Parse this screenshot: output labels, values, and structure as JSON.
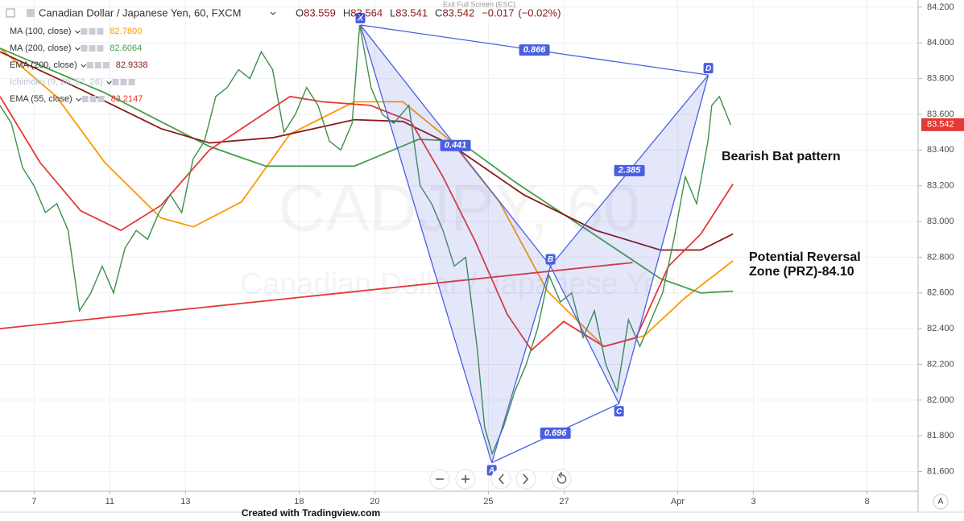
{
  "chart_data": {
    "type": "line",
    "title": "Canadian Dollar / Japanese Yen, 60, FXCM",
    "quote": {
      "labels": [
        "O",
        "H",
        "L",
        "C"
      ],
      "values": [
        83.559,
        83.564,
        83.541,
        83.542
      ]
    },
    "change": {
      "value": -0.017,
      "label": "−0.017"
    },
    "change_pct": {
      "value": -0.02,
      "label": "(−0.02%)"
    },
    "last_price": {
      "value": 83.542,
      "label": "83.542",
      "color": "#e53935"
    },
    "fullscreen_hint": "Exit Full Screen (ESC)",
    "watermark": [
      "CADJPY, 60",
      "Canadian Dollar / Japanese Yen"
    ],
    "footer": "Created with Tradingview.com",
    "scale_button": "A",
    "grid": true,
    "xlim": [
      -0.9,
      23.35
    ],
    "ylim": [
      81.49,
      84.24
    ],
    "xticks": [
      {
        "value": 0,
        "label": "7"
      },
      {
        "value": 2,
        "label": "11"
      },
      {
        "value": 4,
        "label": "13"
      },
      {
        "value": 7,
        "label": "18"
      },
      {
        "value": 9,
        "label": "20"
      },
      {
        "value": 12,
        "label": "25"
      },
      {
        "value": 14,
        "label": "27"
      },
      {
        "value": 17,
        "label": "Apr"
      },
      {
        "value": 19,
        "label": "3"
      },
      {
        "value": 22,
        "label": "8"
      }
    ],
    "yticks": [
      {
        "value": 81.6,
        "label": "81.600"
      },
      {
        "value": 81.8,
        "label": "81.800"
      },
      {
        "value": 82.0,
        "label": "82.000"
      },
      {
        "value": 82.2,
        "label": "82.200"
      },
      {
        "value": 82.4,
        "label": "82.400"
      },
      {
        "value": 82.6,
        "label": "82.600"
      },
      {
        "value": 82.8,
        "label": "82.800"
      },
      {
        "value": 83.0,
        "label": "83.000"
      },
      {
        "value": 83.2,
        "label": "83.200"
      },
      {
        "value": 83.4,
        "label": "83.400"
      },
      {
        "value": 83.6,
        "label": "83.600"
      },
      {
        "value": 83.8,
        "label": "83.800"
      },
      {
        "value": 84.0,
        "label": "84.000"
      },
      {
        "value": 84.2,
        "label": "84.200"
      }
    ],
    "price": {
      "color": "#3d8f4a",
      "x": [
        -0.9,
        -0.6,
        -0.3,
        0,
        0.3,
        0.6,
        0.9,
        1.2,
        1.5,
        1.8,
        2.1,
        2.4,
        2.7,
        3.0,
        3.3,
        3.6,
        3.9,
        4.2,
        4.5,
        4.8,
        5.1,
        5.4,
        5.7,
        6.0,
        6.3,
        6.6,
        6.9,
        7.2,
        7.5,
        7.8,
        8.1,
        8.4,
        8.6,
        8.9,
        9.2,
        9.5,
        9.9,
        10.2,
        10.5,
        10.8,
        11.1,
        11.4,
        11.7,
        11.9,
        12.1,
        12.4,
        12.7,
        13.0,
        13.3,
        13.6,
        13.9,
        14.2,
        14.5,
        14.8,
        15.1,
        15.4,
        15.7,
        16.0,
        16.3,
        16.6,
        16.9,
        17.2,
        17.5,
        17.8,
        17.9,
        18.1,
        18.4
      ],
      "values": [
        83.65,
        83.55,
        83.3,
        83.2,
        83.05,
        83.1,
        82.95,
        82.5,
        82.6,
        82.75,
        82.6,
        82.85,
        82.95,
        82.9,
        83.05,
        83.15,
        83.05,
        83.35,
        83.45,
        83.7,
        83.75,
        83.85,
        83.8,
        83.95,
        83.85,
        83.5,
        83.6,
        83.75,
        83.65,
        83.45,
        83.4,
        83.55,
        84.1,
        83.75,
        83.6,
        83.55,
        83.65,
        83.2,
        83.1,
        82.95,
        82.75,
        82.8,
        82.3,
        81.85,
        81.7,
        81.85,
        82.05,
        82.2,
        82.4,
        82.7,
        82.55,
        82.6,
        82.35,
        82.5,
        82.2,
        82.05,
        82.45,
        82.3,
        82.45,
        82.6,
        82.9,
        83.25,
        83.1,
        83.45,
        83.65,
        83.7,
        83.54
      ]
    },
    "series": [
      {
        "name": "MA (100, close)",
        "color": "#ff9800",
        "last": {
          "value": 82.78,
          "label": "82.7800"
        },
        "x": [
          -0.9,
          0.59,
          1.87,
          3.35,
          4.21,
          5.48,
          6.76,
          8.46,
          9.74,
          11.01,
          12.29,
          13.56,
          15.05,
          16.12,
          17.18,
          18.46
        ],
        "values": [
          83.97,
          83.7,
          83.33,
          83.02,
          82.97,
          83.11,
          83.49,
          83.67,
          83.67,
          83.45,
          83.11,
          82.61,
          82.3,
          82.36,
          82.57,
          82.78
        ]
      },
      {
        "name": "MA (200, close)",
        "color": "#43a047",
        "last": {
          "value": 82.6064,
          "label": "82.6064"
        },
        "x": [
          -0.9,
          1.87,
          4.63,
          6.12,
          8.46,
          10.16,
          11.22,
          12.71,
          14.63,
          16.54,
          17.61,
          18.46
        ],
        "values": [
          83.97,
          83.72,
          83.42,
          83.31,
          83.31,
          83.46,
          83.45,
          83.22,
          82.95,
          82.68,
          82.6,
          82.61
        ]
      },
      {
        "name": "EMA (200, close)",
        "color": "#8b1a1a",
        "last": {
          "value": 82.9338,
          "label": "82.9338"
        },
        "x": [
          -0.9,
          1.23,
          3.35,
          4.63,
          6.33,
          8.46,
          9.74,
          11.01,
          12.93,
          14.84,
          16.54,
          17.61,
          18.46
        ],
        "values": [
          83.95,
          83.74,
          83.52,
          83.44,
          83.47,
          83.57,
          83.56,
          83.43,
          83.15,
          82.95,
          82.84,
          82.84,
          82.93
        ]
      },
      {
        "name": "Ichimoku (9, 26, 52, 26)",
        "color": "#b8c4d6",
        "x": [],
        "values": []
      },
      {
        "name": "EMA (55, close)",
        "color": "#e53935",
        "last": {
          "value": 83.2147,
          "label": "83.2147"
        },
        "x": [
          -0.9,
          0.16,
          1.23,
          2.29,
          3.35,
          4.63,
          5.91,
          6.76,
          7.61,
          8.89,
          9.95,
          10.8,
          11.65,
          12.5,
          13.14,
          13.99,
          15.05,
          15.9,
          16.76,
          17.61,
          18.46
        ],
        "values": [
          83.7,
          83.33,
          83.06,
          82.95,
          83.09,
          83.4,
          83.58,
          83.7,
          83.67,
          83.65,
          83.56,
          83.25,
          82.89,
          82.48,
          82.28,
          82.44,
          82.3,
          82.35,
          82.75,
          82.93,
          83.21
        ]
      }
    ],
    "trendline": {
      "color": "#e53935",
      "x": [
        -0.9,
        15.81
      ],
      "values": [
        82.4,
        82.77
      ]
    },
    "pattern": {
      "color": "#4a5fe0",
      "points": [
        {
          "label": "X",
          "x": 8.62,
          "y": 84.1
        },
        {
          "label": "A",
          "x": 12.09,
          "y": 81.65
        },
        {
          "label": "B",
          "x": 13.64,
          "y": 82.75
        },
        {
          "label": "C",
          "x": 15.45,
          "y": 81.98
        },
        {
          "label": "D",
          "x": 17.81,
          "y": 83.82
        }
      ],
      "ratios": [
        {
          "from": "X",
          "to": "D",
          "value": 0.866
        },
        {
          "from": "X",
          "to": "B",
          "value": 0.441
        },
        {
          "from": "B",
          "to": "D",
          "value": 2.385
        },
        {
          "from": "A",
          "to": "C",
          "value": 0.696
        }
      ]
    },
    "annotations": [
      "Bearish Bat pattern",
      "Potential Reversal",
      "Zone (PRZ)-84.10"
    ]
  }
}
